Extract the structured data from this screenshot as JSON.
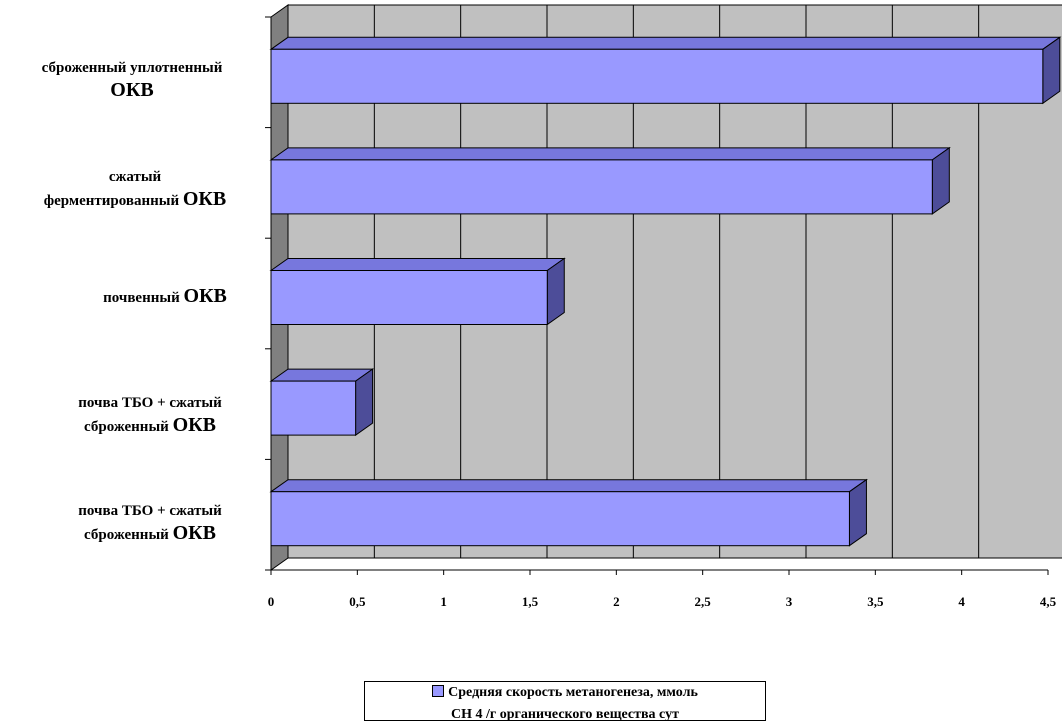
{
  "chart_data": {
    "type": "bar",
    "orientation": "horizontal",
    "three_d": true,
    "categories": [
      {
        "line1": "сброженный уплотненный",
        "line2": "ОКВ"
      },
      {
        "line1": "сжатый",
        "line2": "ферментированный ОКВ"
      },
      {
        "line1": "почвенный ОКВ",
        "line2": ""
      },
      {
        "line1": "почва ТБО + сжатый",
        "line2": "сброженный  ОКВ"
      },
      {
        "line1": "почва ТБО + сжатый",
        "line2": "сброженный  ОКВ"
      }
    ],
    "values": [
      4.47,
      3.83,
      1.6,
      0.49,
      3.35
    ],
    "xlim": [
      0,
      4.5
    ],
    "xticks": [
      "0",
      "0,5",
      "1",
      "1,5",
      "2",
      "2,5",
      "3",
      "3,5",
      "4",
      "4,5"
    ],
    "grid": true,
    "series": [
      {
        "name": "Средняя скорость метаногенеза, ммоль СН 4  /г органического вещества сут",
        "name_line1": "Средняя скорость метаногенеза, ммоль",
        "name_line2": "СН 4  /г органического вещества сут"
      }
    ],
    "legend_position": "bottom",
    "colors": {
      "bar_face": "#9999ff",
      "bar_top": "#7777dd",
      "bar_side": "#4d4d99",
      "plot_wall": "#c0c0c0",
      "floor": "#808080"
    }
  }
}
